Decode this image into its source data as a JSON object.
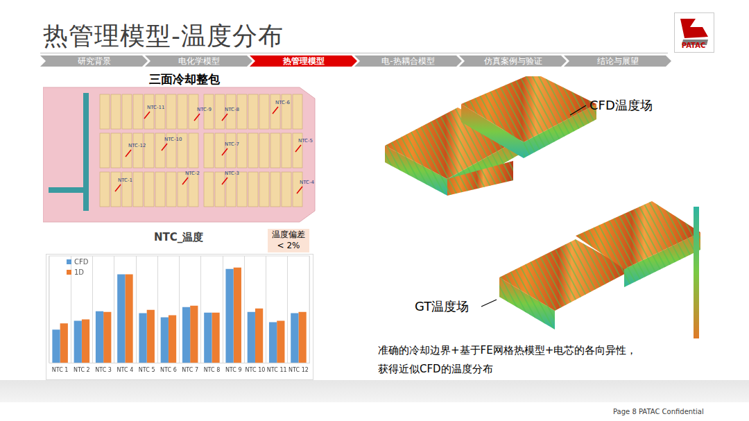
{
  "slide": {
    "title": "热管理模型-温度分布",
    "nav": [
      "研究背景",
      "电化学模型",
      "热管理模型",
      "电-热耦合模型",
      "仿真案例与验证",
      "结论与展望"
    ],
    "nav_active": 2,
    "logo": "PATAC",
    "pack_title": "三面冷却整包",
    "ntc_labels": [
      "NTC-11",
      "NTC-9",
      "NTC-8",
      "NTC-6",
      "NTC-12",
      "NTC-10",
      "NTC-7",
      "NTC-5",
      "NTC-1",
      "NTC-2",
      "NTC-3",
      "NTC-4"
    ],
    "deviation_note": [
      "温度偏差",
      "< 2%"
    ],
    "cfd_label": "CFD温度场",
    "gt_label": "GT温度场",
    "conclusion": [
      "准确的冷却边界+基于FE网格热模型+电芯的各向异性，",
      "获得近似CFD的温度分布"
    ],
    "footer": "Page 8  PATAC Confidential"
  },
  "chart_data": {
    "type": "bar",
    "title": "NTC_温度",
    "categories": [
      "NTC 1",
      "NTC 2",
      "NTC 3",
      "NTC 4",
      "NTC 5",
      "NTC 6",
      "NTC 7",
      "NTC 8",
      "NTC 9",
      "NTC 10",
      "NTC 11",
      "NTC 12"
    ],
    "series": [
      {
        "name": "CFD",
        "color": "#5b9bd5",
        "values": [
          49,
          62,
          76,
          130,
          73,
          67,
          82,
          74,
          138,
          75,
          60,
          73
        ]
      },
      {
        "name": "1D",
        "color": "#ed7d31",
        "values": [
          58,
          64,
          75,
          130,
          78,
          70,
          84,
          74,
          140,
          80,
          62,
          75
        ]
      }
    ],
    "ylim": [
      0,
      157
    ],
    "tick_labels": "x",
    "grid": true,
    "legend": "top-left"
  }
}
